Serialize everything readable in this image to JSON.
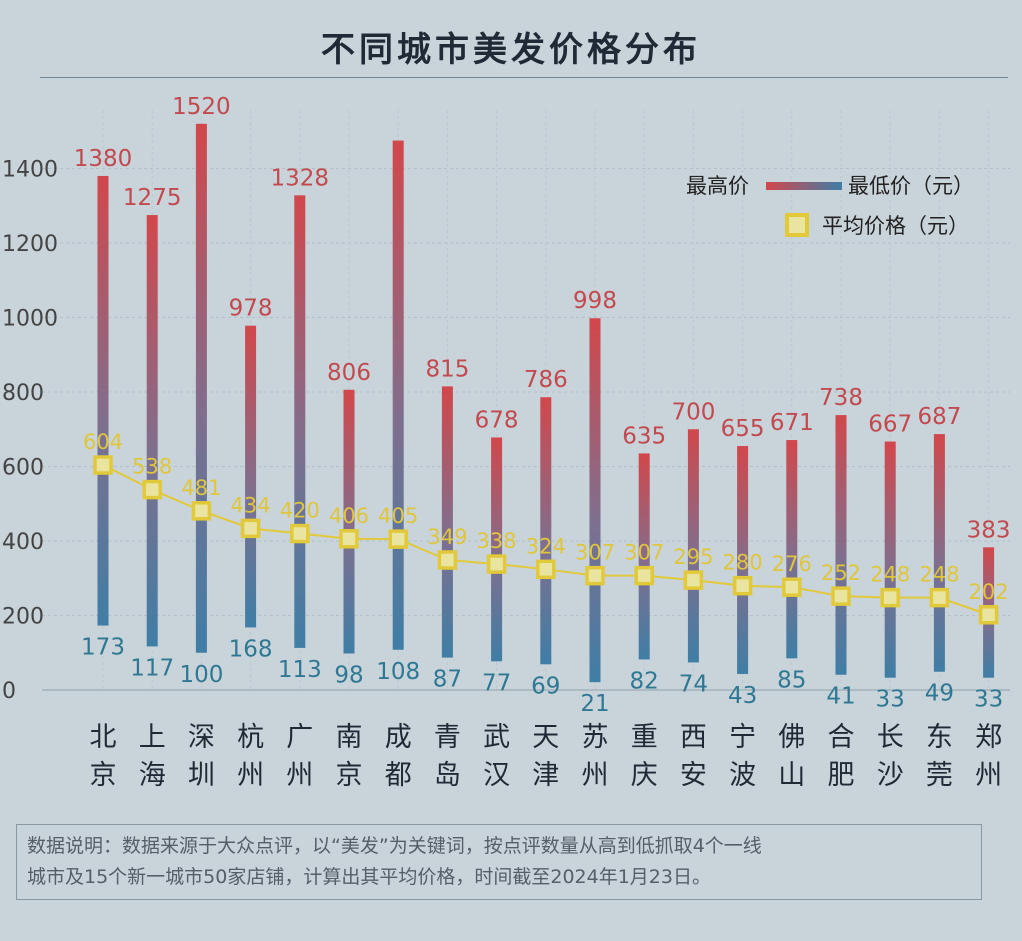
{
  "chart_data": {
    "type": "bar",
    "title": "不同城市美发价格分布",
    "categories": [
      "北京",
      "上海",
      "深圳",
      "杭州",
      "广州",
      "南京",
      "成都",
      "青岛",
      "武汉",
      "天津",
      "苏州",
      "重庆",
      "西安",
      "宁波",
      "佛山",
      "合肥",
      "长沙",
      "东莞",
      "郑州"
    ],
    "series": [
      {
        "name": "最高价",
        "values": [
          1380,
          1275,
          1520,
          978,
          1328,
          806,
          1475,
          815,
          678,
          786,
          998,
          635,
          700,
          655,
          671,
          738,
          667,
          687,
          383
        ]
      },
      {
        "name": "最低价（元）",
        "values": [
          173,
          117,
          100,
          168,
          113,
          98,
          108,
          87,
          77,
          69,
          21,
          82,
          74,
          43,
          85,
          41,
          33,
          49,
          33
        ]
      },
      {
        "name": "平均价格（元）",
        "type": "line",
        "values": [
          604,
          538,
          481,
          434,
          420,
          406,
          405,
          349,
          338,
          324,
          307,
          307,
          295,
          280,
          276,
          252,
          248,
          248,
          202
        ]
      }
    ],
    "max_labels": [
      "1380",
      "1275",
      "1520",
      "978",
      "1328",
      "806",
      "",
      "815",
      "678",
      "786",
      "998",
      "635",
      "700",
      "655",
      "671",
      "738",
      "667",
      "687",
      "383"
    ],
    "ylim": [
      0,
      1500
    ],
    "yticks": [
      0,
      200,
      400,
      600,
      800,
      1000,
      1200,
      1400
    ],
    "grid": true,
    "legend_position": "top-right",
    "colors": {
      "max": "#c94a4f",
      "min": "#3c7a9f",
      "avg_line": "#e2c93a",
      "avg_marker_fill": "#e9e5a0",
      "max_label": "#c24a4f",
      "min_label": "#2f7894",
      "avg_label": "#e0c63a"
    }
  },
  "legend": {
    "max_label": "最高价",
    "min_label": "最低价（元）",
    "avg_label": "平均价格（元）"
  },
  "note": {
    "line1": "数据说明：数据来源于大众点评，以“美发”为关键词，按点评数量从高到低抓取4个一线",
    "line2": "城市及15个新一城市50家店铺，计算出其平均价格，时间截至2024年1月23日。"
  }
}
